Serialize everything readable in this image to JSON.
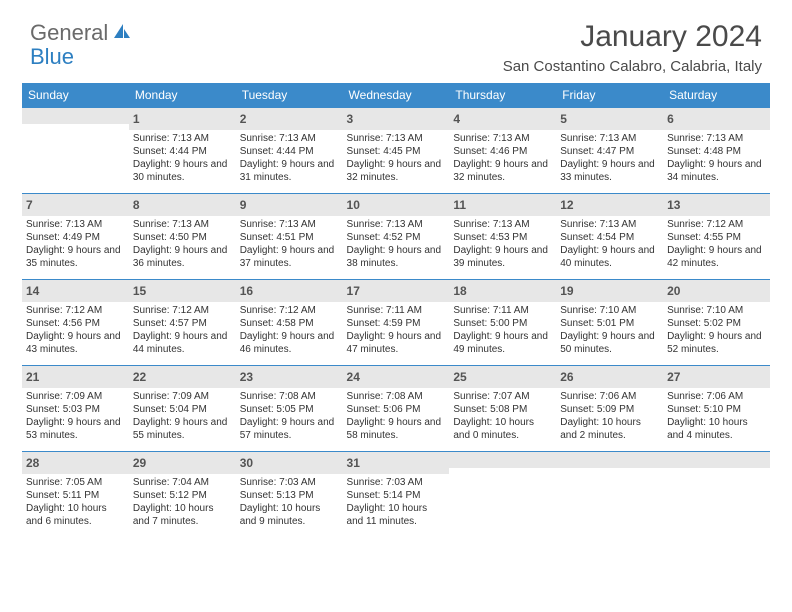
{
  "logo": {
    "general": "General",
    "blue": "Blue"
  },
  "title": "January 2024",
  "location": "San Costantino Calabro, Calabria, Italy",
  "colors": {
    "header_bg": "#3b8aca",
    "header_text": "#ffffff",
    "daynum_bg": "#e7e7e7",
    "row_border": "#3b8aca",
    "body_text": "#333333",
    "logo_gray": "#6a6a6a",
    "logo_blue": "#2d7fc1"
  },
  "day_names": [
    "Sunday",
    "Monday",
    "Tuesday",
    "Wednesday",
    "Thursday",
    "Friday",
    "Saturday"
  ],
  "weeks": [
    [
      {
        "n": "",
        "sunrise": "",
        "sunset": "",
        "daylight": ""
      },
      {
        "n": "1",
        "sunrise": "Sunrise: 7:13 AM",
        "sunset": "Sunset: 4:44 PM",
        "daylight": "Daylight: 9 hours and 30 minutes."
      },
      {
        "n": "2",
        "sunrise": "Sunrise: 7:13 AM",
        "sunset": "Sunset: 4:44 PM",
        "daylight": "Daylight: 9 hours and 31 minutes."
      },
      {
        "n": "3",
        "sunrise": "Sunrise: 7:13 AM",
        "sunset": "Sunset: 4:45 PM",
        "daylight": "Daylight: 9 hours and 32 minutes."
      },
      {
        "n": "4",
        "sunrise": "Sunrise: 7:13 AM",
        "sunset": "Sunset: 4:46 PM",
        "daylight": "Daylight: 9 hours and 32 minutes."
      },
      {
        "n": "5",
        "sunrise": "Sunrise: 7:13 AM",
        "sunset": "Sunset: 4:47 PM",
        "daylight": "Daylight: 9 hours and 33 minutes."
      },
      {
        "n": "6",
        "sunrise": "Sunrise: 7:13 AM",
        "sunset": "Sunset: 4:48 PM",
        "daylight": "Daylight: 9 hours and 34 minutes."
      }
    ],
    [
      {
        "n": "7",
        "sunrise": "Sunrise: 7:13 AM",
        "sunset": "Sunset: 4:49 PM",
        "daylight": "Daylight: 9 hours and 35 minutes."
      },
      {
        "n": "8",
        "sunrise": "Sunrise: 7:13 AM",
        "sunset": "Sunset: 4:50 PM",
        "daylight": "Daylight: 9 hours and 36 minutes."
      },
      {
        "n": "9",
        "sunrise": "Sunrise: 7:13 AM",
        "sunset": "Sunset: 4:51 PM",
        "daylight": "Daylight: 9 hours and 37 minutes."
      },
      {
        "n": "10",
        "sunrise": "Sunrise: 7:13 AM",
        "sunset": "Sunset: 4:52 PM",
        "daylight": "Daylight: 9 hours and 38 minutes."
      },
      {
        "n": "11",
        "sunrise": "Sunrise: 7:13 AM",
        "sunset": "Sunset: 4:53 PM",
        "daylight": "Daylight: 9 hours and 39 minutes."
      },
      {
        "n": "12",
        "sunrise": "Sunrise: 7:13 AM",
        "sunset": "Sunset: 4:54 PM",
        "daylight": "Daylight: 9 hours and 40 minutes."
      },
      {
        "n": "13",
        "sunrise": "Sunrise: 7:12 AM",
        "sunset": "Sunset: 4:55 PM",
        "daylight": "Daylight: 9 hours and 42 minutes."
      }
    ],
    [
      {
        "n": "14",
        "sunrise": "Sunrise: 7:12 AM",
        "sunset": "Sunset: 4:56 PM",
        "daylight": "Daylight: 9 hours and 43 minutes."
      },
      {
        "n": "15",
        "sunrise": "Sunrise: 7:12 AM",
        "sunset": "Sunset: 4:57 PM",
        "daylight": "Daylight: 9 hours and 44 minutes."
      },
      {
        "n": "16",
        "sunrise": "Sunrise: 7:12 AM",
        "sunset": "Sunset: 4:58 PM",
        "daylight": "Daylight: 9 hours and 46 minutes."
      },
      {
        "n": "17",
        "sunrise": "Sunrise: 7:11 AM",
        "sunset": "Sunset: 4:59 PM",
        "daylight": "Daylight: 9 hours and 47 minutes."
      },
      {
        "n": "18",
        "sunrise": "Sunrise: 7:11 AM",
        "sunset": "Sunset: 5:00 PM",
        "daylight": "Daylight: 9 hours and 49 minutes."
      },
      {
        "n": "19",
        "sunrise": "Sunrise: 7:10 AM",
        "sunset": "Sunset: 5:01 PM",
        "daylight": "Daylight: 9 hours and 50 minutes."
      },
      {
        "n": "20",
        "sunrise": "Sunrise: 7:10 AM",
        "sunset": "Sunset: 5:02 PM",
        "daylight": "Daylight: 9 hours and 52 minutes."
      }
    ],
    [
      {
        "n": "21",
        "sunrise": "Sunrise: 7:09 AM",
        "sunset": "Sunset: 5:03 PM",
        "daylight": "Daylight: 9 hours and 53 minutes."
      },
      {
        "n": "22",
        "sunrise": "Sunrise: 7:09 AM",
        "sunset": "Sunset: 5:04 PM",
        "daylight": "Daylight: 9 hours and 55 minutes."
      },
      {
        "n": "23",
        "sunrise": "Sunrise: 7:08 AM",
        "sunset": "Sunset: 5:05 PM",
        "daylight": "Daylight: 9 hours and 57 minutes."
      },
      {
        "n": "24",
        "sunrise": "Sunrise: 7:08 AM",
        "sunset": "Sunset: 5:06 PM",
        "daylight": "Daylight: 9 hours and 58 minutes."
      },
      {
        "n": "25",
        "sunrise": "Sunrise: 7:07 AM",
        "sunset": "Sunset: 5:08 PM",
        "daylight": "Daylight: 10 hours and 0 minutes."
      },
      {
        "n": "26",
        "sunrise": "Sunrise: 7:06 AM",
        "sunset": "Sunset: 5:09 PM",
        "daylight": "Daylight: 10 hours and 2 minutes."
      },
      {
        "n": "27",
        "sunrise": "Sunrise: 7:06 AM",
        "sunset": "Sunset: 5:10 PM",
        "daylight": "Daylight: 10 hours and 4 minutes."
      }
    ],
    [
      {
        "n": "28",
        "sunrise": "Sunrise: 7:05 AM",
        "sunset": "Sunset: 5:11 PM",
        "daylight": "Daylight: 10 hours and 6 minutes."
      },
      {
        "n": "29",
        "sunrise": "Sunrise: 7:04 AM",
        "sunset": "Sunset: 5:12 PM",
        "daylight": "Daylight: 10 hours and 7 minutes."
      },
      {
        "n": "30",
        "sunrise": "Sunrise: 7:03 AM",
        "sunset": "Sunset: 5:13 PM",
        "daylight": "Daylight: 10 hours and 9 minutes."
      },
      {
        "n": "31",
        "sunrise": "Sunrise: 7:03 AM",
        "sunset": "Sunset: 5:14 PM",
        "daylight": "Daylight: 10 hours and 11 minutes."
      },
      {
        "n": "",
        "sunrise": "",
        "sunset": "",
        "daylight": ""
      },
      {
        "n": "",
        "sunrise": "",
        "sunset": "",
        "daylight": ""
      },
      {
        "n": "",
        "sunrise": "",
        "sunset": "",
        "daylight": ""
      }
    ]
  ]
}
